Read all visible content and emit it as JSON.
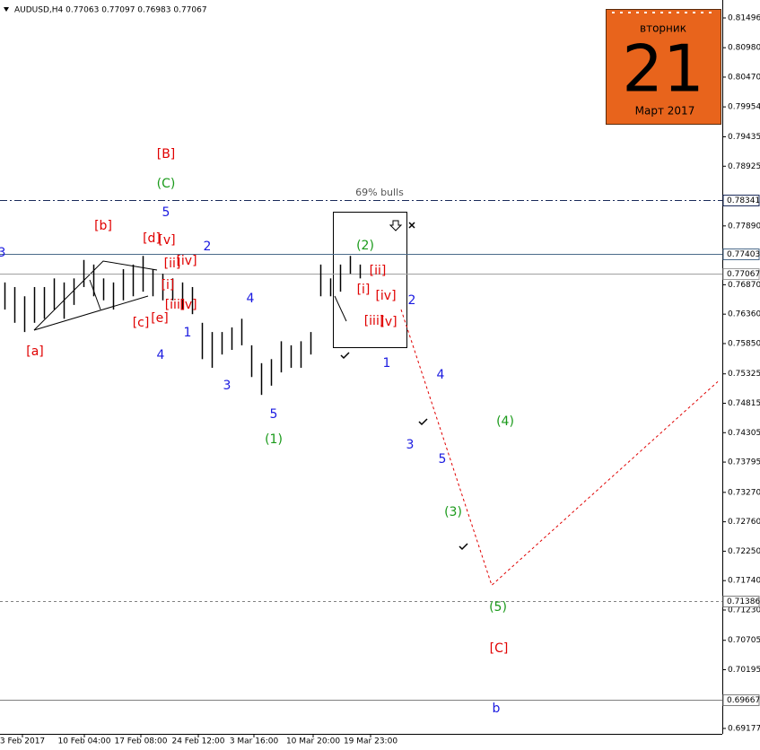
{
  "chart_data": {
    "type": "ohlc",
    "title": "AUDUSD,H4  0.77063 0.77097 0.76983 0.77067",
    "high": [
      0.7691,
      0.7683,
      0.7667,
      0.7683,
      0.7683,
      0.7698,
      0.7691,
      0.7698,
      0.773,
      0.7722,
      0.7698,
      0.7691,
      0.7714,
      0.7722,
      0.7737,
      0.7714,
      0.7706,
      0.7698,
      0.7691,
      0.7683,
      0.7621,
      0.7605,
      0.7605,
      0.7613,
      0.7628,
      0.7582,
      0.7551,
      0.7558,
      0.7589,
      0.7582,
      0.7589,
      0.7605,
      0.7722,
      0.7698,
      0.7722,
      0.7737,
      0.7722
    ],
    "low": [
      0.7644,
      0.7621,
      0.7605,
      0.7621,
      0.7628,
      0.7644,
      0.7628,
      0.7652,
      0.7683,
      0.7667,
      0.766,
      0.7644,
      0.766,
      0.7667,
      0.7675,
      0.7667,
      0.766,
      0.766,
      0.7644,
      0.7636,
      0.7558,
      0.7543,
      0.7566,
      0.7574,
      0.7582,
      0.7527,
      0.7496,
      0.7512,
      0.7535,
      0.7543,
      0.7543,
      0.7566,
      0.7667,
      0.7667,
      0.7675,
      0.7706,
      0.7698
    ],
    "bar_color": "#000000",
    "projection": [
      0.7644,
      0.7166,
      0.7519
    ],
    "projection_color": "#e00000",
    "ylim": [
      0.69083,
      0.81807
    ],
    "yticks": [
      0.81496,
      {
        "value": 0.8098,
        "label": "0.80980"
      },
      {
        "value": 0.8047,
        "label": "0.80470"
      },
      0.79954,
      0.79435,
      0.78925,
      {
        "value": 0.7789,
        "label": "0.77890"
      },
      {
        "value": 0.7687,
        "label": "0.76870"
      },
      {
        "value": 0.7636,
        "label": "0.76360"
      },
      {
        "value": 0.7585,
        "label": "0.75850"
      },
      0.75325,
      0.74815,
      0.74305,
      0.73795,
      {
        "value": 0.7327,
        "label": "0.73270"
      },
      {
        "value": 0.7276,
        "label": "0.72760"
      },
      {
        "value": 0.7225,
        "label": "0.72250"
      },
      {
        "value": 0.7174,
        "label": "0.71740"
      },
      {
        "value": 0.7123,
        "label": "0.71230"
      },
      0.70705,
      0.70195,
      0.69177
    ],
    "levels": [
      {
        "value": 0.78341,
        "style": "dash-dot",
        "color": "#1a2a5a"
      },
      {
        "value": 0.77403,
        "style": "solid",
        "color": "#4a6a8a"
      },
      {
        "value": 0.77067,
        "style": "solid",
        "color": "#a0a0a0"
      },
      {
        "value": 0.71386,
        "style": "dashed",
        "color": "#808080"
      },
      {
        "value": 0.69667,
        "style": "solid",
        "color": "#808080"
      }
    ],
    "x_labels": [
      "3 Feb 2017",
      "10 Feb 04:00",
      "17 Feb 08:00",
      "24 Feb 12:00",
      "3 Mar 16:00",
      "10 Mar 20:00",
      "19 Mar 23:00"
    ],
    "note": "69% bulls",
    "annotations": [
      {
        "text": "[B]",
        "color": "#e00000"
      },
      {
        "text": "(C)",
        "color": "#1a9a1a"
      },
      {
        "text": "5",
        "color": "#1a1ae0"
      },
      {
        "text": "[b]",
        "color": "#e00000"
      },
      {
        "text": "[d]",
        "color": "#e00000"
      },
      {
        "text": "[v]",
        "color": "#e00000"
      },
      {
        "text": "2",
        "color": "#1a1ae0"
      },
      {
        "text": "[ii]",
        "color": "#e00000"
      },
      {
        "text": "[iv]",
        "color": "#e00000"
      },
      {
        "text": "[i]",
        "color": "#e00000"
      },
      {
        "text": "[iii]",
        "color": "#e00000"
      },
      {
        "text": "[v]",
        "color": "#e00000"
      },
      {
        "text": "[e]",
        "color": "#e00000"
      },
      {
        "text": "[c]",
        "color": "#e00000"
      },
      {
        "text": "[a]",
        "color": "#e00000"
      },
      {
        "text": "1",
        "color": "#1a1ae0"
      },
      {
        "text": "4",
        "color": "#1a1ae0"
      },
      {
        "text": "4",
        "color": "#1a1ae0"
      },
      {
        "text": "3",
        "color": "#1a1ae0"
      },
      {
        "text": "5",
        "color": "#1a1ae0"
      },
      {
        "text": "(1)",
        "color": "#1a9a1a"
      },
      {
        "text": "(2)",
        "color": "#1a9a1a"
      },
      {
        "text": "[ii]",
        "color": "#e00000"
      },
      {
        "text": "[i]",
        "color": "#e00000"
      },
      {
        "text": "[iv]",
        "color": "#e00000"
      },
      {
        "text": "[iii]",
        "color": "#e00000"
      },
      {
        "text": "[v]",
        "color": "#e00000"
      },
      {
        "text": "2",
        "color": "#1a1ae0"
      },
      {
        "text": "1",
        "color": "#1a1ae0"
      },
      {
        "text": "4",
        "color": "#1a1ae0"
      },
      {
        "text": "3",
        "color": "#1a1ae0"
      },
      {
        "text": "5",
        "color": "#1a1ae0"
      },
      {
        "text": "(3)",
        "color": "#1a9a1a"
      },
      {
        "text": "(4)",
        "color": "#1a9a1a"
      },
      {
        "text": "(5)",
        "color": "#1a9a1a"
      },
      {
        "text": "[C]",
        "color": "#e00000"
      },
      {
        "text": "b",
        "color": "#1a1ae0"
      },
      {
        "text": "3",
        "color": "#1a1ae0"
      }
    ]
  },
  "calendar": {
    "weekday": "вторник",
    "day": "21",
    "month": "Март 2017"
  }
}
